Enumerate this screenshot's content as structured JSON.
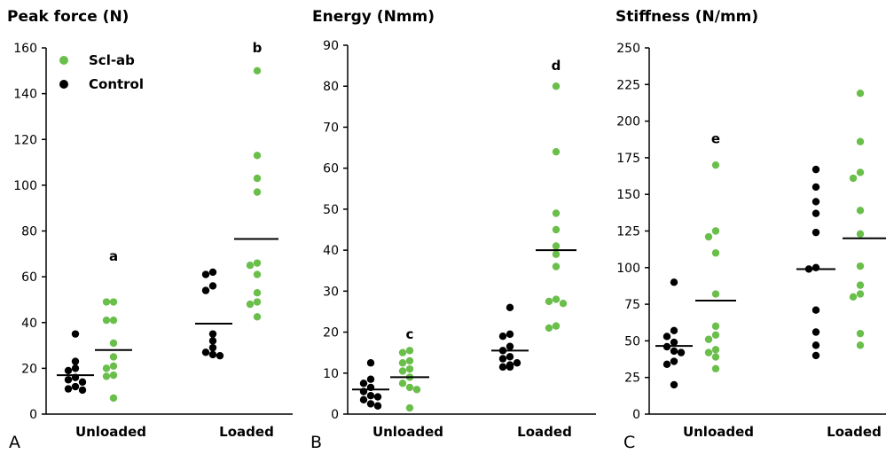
{
  "colors": {
    "scl_ab": "#6abf4b",
    "control": "#000000"
  },
  "legend": [
    {
      "name": "Scl-ab",
      "color": "#6abf4b"
    },
    {
      "name": "Control",
      "color": "#000000"
    }
  ],
  "chart_data": [
    {
      "type": "scatter",
      "panel_label": "A",
      "title": "Peak force (N)",
      "ylim": [
        0,
        160
      ],
      "yticks": [
        "0",
        "20",
        "40",
        "60",
        "80",
        "100",
        "120",
        "140",
        "160"
      ],
      "categories": [
        "Unloaded",
        "Loaded"
      ],
      "significance": [
        {
          "label": "a",
          "group": "Unloaded",
          "series": "Scl-ab",
          "y": 69
        },
        {
          "label": "b",
          "group": "Loaded",
          "series": "Scl-ab",
          "y": 160
        }
      ],
      "series": [
        {
          "name": "Control",
          "mean": [
            17,
            39.5
          ],
          "values": [
            [
              35,
              23,
              20,
              19,
              16,
              15,
              14,
              12,
              11,
              10.5
            ],
            [
              62,
              61,
              56,
              54,
              35,
              32,
              29,
              27,
              26,
              25.5
            ]
          ]
        },
        {
          "name": "Scl-ab",
          "mean": [
            28,
            76.5
          ],
          "values": [
            [
              49,
              49,
              41,
              41,
              31,
              25,
              21,
              20,
              17,
              16.5,
              7
            ],
            [
              150,
              113,
              103,
              97,
              66,
              65,
              61,
              53,
              49,
              48,
              42.5
            ]
          ]
        }
      ]
    },
    {
      "type": "scatter",
      "panel_label": "B",
      "title": "Energy (Nmm)",
      "ylim": [
        0,
        90
      ],
      "yticks": [
        "0",
        "10",
        "20",
        "30",
        "40",
        "50",
        "60",
        "70",
        "80",
        "90"
      ],
      "categories": [
        "Unloaded",
        "Loaded"
      ],
      "significance": [
        {
          "label": "c",
          "group": "Unloaded",
          "series": "Scl-ab",
          "y": 19.5
        },
        {
          "label": "d",
          "group": "Loaded",
          "series": "Scl-ab",
          "y": 85
        }
      ],
      "series": [
        {
          "name": "Control",
          "mean": [
            6,
            15.5
          ],
          "values": [
            [
              12.5,
              8.5,
              7.5,
              6.5,
              5.5,
              4.5,
              4.2,
              3.5,
              2.5,
              2
            ],
            [
              26,
              19.5,
              19,
              16.5,
              15.5,
              14,
              13.5,
              12.5,
              12,
              11.5,
              11.5
            ]
          ]
        },
        {
          "name": "Scl-ab",
          "mean": [
            9,
            40
          ],
          "values": [
            [
              15.5,
              15,
              13,
              12.5,
              11,
              10.5,
              9,
              7.5,
              6.5,
              6,
              1.5
            ],
            [
              80,
              64,
              49,
              45,
              41,
              39,
              36,
              28,
              27.5,
              27,
              21.5,
              21
            ]
          ]
        }
      ]
    },
    {
      "type": "scatter",
      "panel_label": "C",
      "title": "Stiffness (N/mm)",
      "ylim": [
        0,
        250
      ],
      "yticks": [
        "0",
        "25",
        "50",
        "75",
        "100",
        "125",
        "150",
        "175",
        "200",
        "225",
        "250"
      ],
      "categories": [
        "Unloaded",
        "Loaded"
      ],
      "significance": [
        {
          "label": "e",
          "group": "Unloaded",
          "series": "Scl-ab",
          "y": 188
        }
      ],
      "series": [
        {
          "name": "Control",
          "mean": [
            46.5,
            99
          ],
          "values": [
            [
              90,
              57,
              53,
              49,
              46,
              43,
              42,
              36,
              34,
              20
            ],
            [
              167,
              155,
              145,
              137,
              124,
              100,
              99,
              71,
              56,
              47,
              40
            ]
          ]
        },
        {
          "name": "Scl-ab",
          "mean": [
            77.5,
            120
          ],
          "values": [
            [
              170,
              125,
              121,
              110,
              82,
              60,
              54,
              51,
              44,
              42,
              39,
              31
            ],
            [
              219,
              186,
              165,
              161,
              139,
              123,
              101,
              88,
              82,
              80,
              55,
              47
            ]
          ]
        }
      ]
    }
  ]
}
